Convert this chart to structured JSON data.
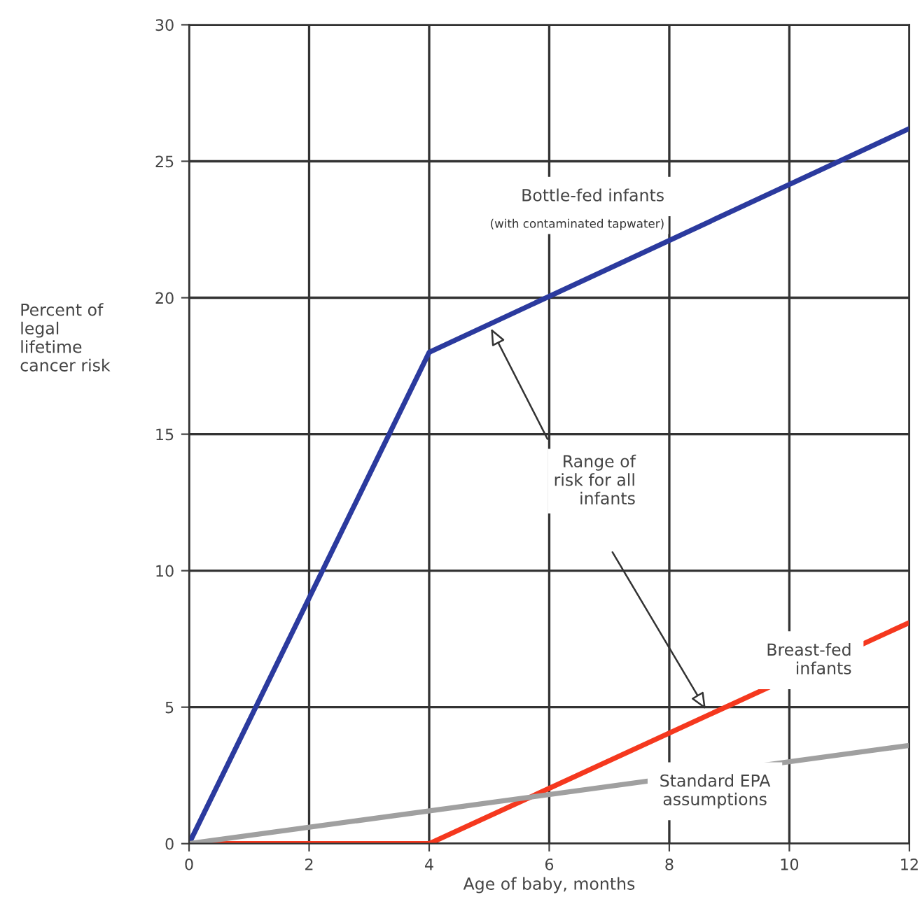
{
  "chart_data": {
    "type": "line",
    "xlabel": "Age of baby, months",
    "ylabel": "Percent of\nlegal\nlifetime\ncancer risk",
    "x": [
      0,
      4,
      12
    ],
    "series": [
      {
        "name": "Bottle-fed infants",
        "color": "#2b3a9e",
        "values": [
          0,
          18,
          26.2
        ]
      },
      {
        "name": "Breast-fed\ninfants",
        "color": "#f5381e",
        "values": [
          0,
          0,
          8.1
        ]
      },
      {
        "name": "Standard EPA\nassumptions",
        "color": "#a0a0a0",
        "x": [
          0,
          12
        ],
        "values": [
          0,
          3.6
        ]
      }
    ],
    "annotations": [
      "(with contaminated tapwater)",
      {
        "text": "Range of\nrisk for all\ninfants",
        "x": 5.0,
        "y": 19.0
      }
    ],
    "xlim": [
      0,
      12
    ],
    "ylim": [
      0,
      30
    ],
    "xticks": [
      0,
      2,
      4,
      6,
      8,
      10,
      12
    ],
    "yticks": [
      0,
      5,
      10,
      15,
      20,
      25,
      30
    ],
    "grid": true,
    "marker": "none",
    "line_style": "solid",
    "legend": false
  }
}
